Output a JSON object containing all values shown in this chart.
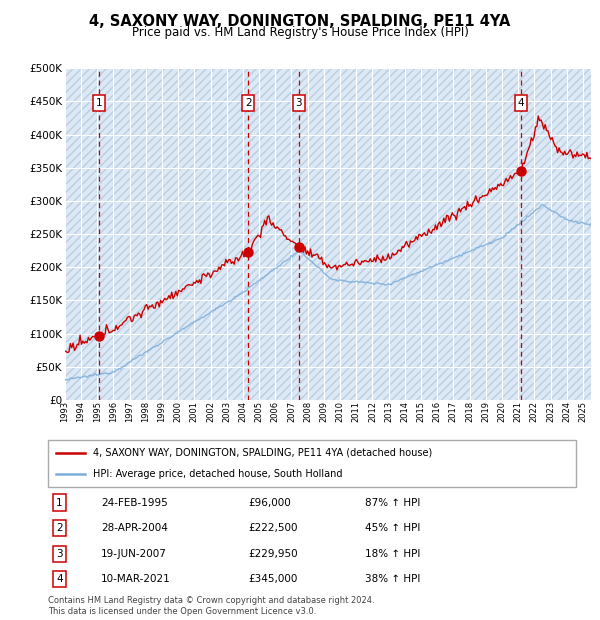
{
  "title": "4, SAXONY WAY, DONINGTON, SPALDING, PE11 4YA",
  "subtitle": "Price paid vs. HM Land Registry's House Price Index (HPI)",
  "ylim": [
    0,
    500000
  ],
  "yticks": [
    0,
    50000,
    100000,
    150000,
    200000,
    250000,
    300000,
    350000,
    400000,
    450000,
    500000
  ],
  "ytick_labels": [
    "£0",
    "£50K",
    "£100K",
    "£150K",
    "£200K",
    "£250K",
    "£300K",
    "£350K",
    "£400K",
    "£450K",
    "£500K"
  ],
  "background_color": "#ffffff",
  "plot_bg_color": "#dce8f5",
  "hatch_color": "#b8cfe0",
  "grid_color": "#ffffff",
  "sale_dates": [
    1995.12,
    2004.32,
    2007.46,
    2021.19
  ],
  "sale_prices": [
    96000,
    222500,
    229950,
    345000
  ],
  "sale_labels": [
    "1",
    "2",
    "3",
    "4"
  ],
  "sale_date_strings": [
    "24-FEB-1995",
    "28-APR-2004",
    "19-JUN-2007",
    "10-MAR-2021"
  ],
  "sale_price_strings": [
    "£96,000",
    "£222,500",
    "£229,950",
    "£345,000"
  ],
  "sale_hpi_strings": [
    "87% ↑ HPI",
    "45% ↑ HPI",
    "18% ↑ HPI",
    "38% ↑ HPI"
  ],
  "red_line_color": "#cc0000",
  "blue_line_color": "#7aaddb",
  "dashed_line_color": "#cc0000",
  "box_edge_color": "#cc0000",
  "legend_label_red": "4, SAXONY WAY, DONINGTON, SPALDING, PE11 4YA (detached house)",
  "legend_label_blue": "HPI: Average price, detached house, South Holland",
  "footer": "Contains HM Land Registry data © Crown copyright and database right 2024.\nThis data is licensed under the Open Government Licence v3.0.",
  "xmin": 1993.0,
  "xmax": 2025.5,
  "xtick_years": [
    1993,
    1994,
    1995,
    1996,
    1997,
    1998,
    1999,
    2000,
    2001,
    2002,
    2003,
    2004,
    2005,
    2006,
    2007,
    2008,
    2009,
    2010,
    2011,
    2012,
    2013,
    2014,
    2015,
    2016,
    2017,
    2018,
    2019,
    2020,
    2021,
    2022,
    2023,
    2024,
    2025
  ]
}
